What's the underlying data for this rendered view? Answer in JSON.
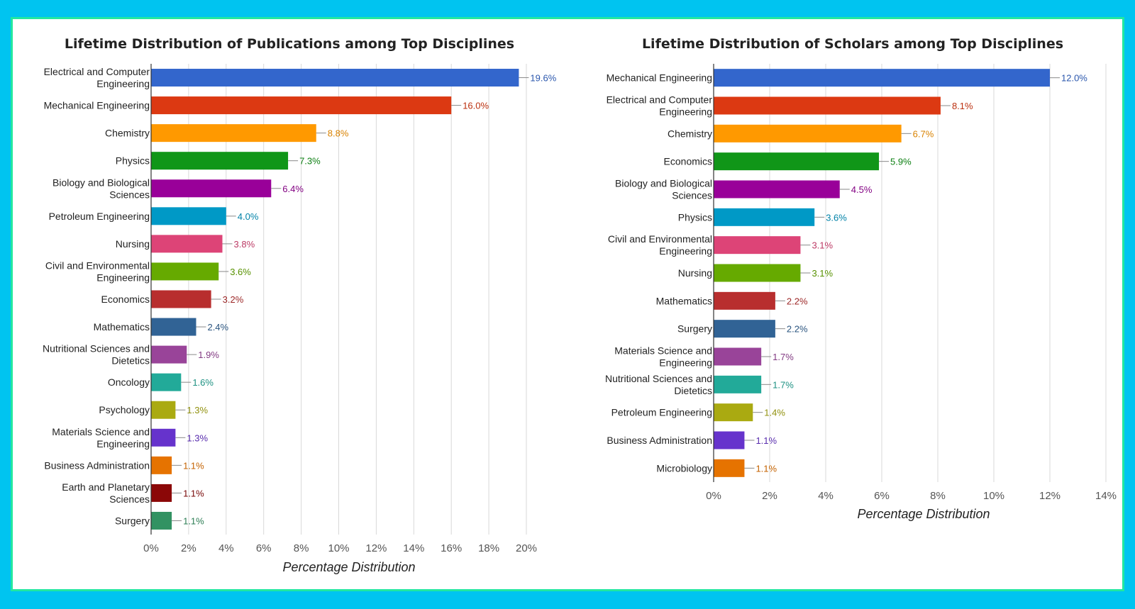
{
  "chart_data": [
    {
      "type": "bar",
      "orientation": "horizontal",
      "title": "Lifetime Distribution of Publications among Top Disciplines",
      "xlabel": "Percentage Distribution",
      "ylabel": "",
      "xlim": [
        0,
        20
      ],
      "xticks": [
        "0%",
        "2%",
        "4%",
        "6%",
        "8%",
        "10%",
        "12%",
        "14%",
        "16%",
        "18%",
        "20%"
      ],
      "grid": true,
      "categories": [
        [
          "Electrical and Computer",
          "Engineering"
        ],
        [
          "Mechanical Engineering"
        ],
        [
          "Chemistry"
        ],
        [
          "Physics"
        ],
        [
          "Biology and Biological",
          "Sciences"
        ],
        [
          "Petroleum Engineering"
        ],
        [
          "Nursing"
        ],
        [
          "Civil and Environmental",
          "Engineering"
        ],
        [
          "Economics"
        ],
        [
          "Mathematics"
        ],
        [
          "Nutritional Sciences and",
          "Dietetics"
        ],
        [
          "Oncology"
        ],
        [
          "Psychology"
        ],
        [
          "Materials Science and",
          "Engineering"
        ],
        [
          "Business Administration"
        ],
        [
          "Earth and Planetary",
          "Sciences"
        ],
        [
          "Surgery"
        ]
      ],
      "values": [
        19.6,
        16.0,
        8.8,
        7.3,
        6.4,
        4.0,
        3.8,
        3.6,
        3.2,
        2.4,
        1.9,
        1.6,
        1.3,
        1.3,
        1.1,
        1.1,
        1.1
      ],
      "labels": [
        "19.6%",
        "16.0%",
        "8.8%",
        "7.3%",
        "6.4%",
        "4.0%",
        "3.8%",
        "3.6%",
        "3.2%",
        "2.4%",
        "1.9%",
        "1.6%",
        "1.3%",
        "1.3%",
        "1.1%",
        "1.1%",
        "1.1%"
      ],
      "colors": [
        "#3366cc",
        "#dc3912",
        "#ff9900",
        "#109618",
        "#990099",
        "#0099c6",
        "#dd4477",
        "#66aa00",
        "#b82e2e",
        "#316395",
        "#994499",
        "#22aa99",
        "#aaaa11",
        "#6633cc",
        "#e67300",
        "#8b0707",
        "#329262"
      ]
    },
    {
      "type": "bar",
      "orientation": "horizontal",
      "title": "Lifetime Distribution of Scholars among Top Disciplines",
      "xlabel": "Percentage Distribution",
      "ylabel": "",
      "xlim": [
        0,
        14
      ],
      "xticks": [
        "0%",
        "2%",
        "4%",
        "6%",
        "8%",
        "10%",
        "12%",
        "14%"
      ],
      "grid": true,
      "categories": [
        [
          "Mechanical Engineering"
        ],
        [
          "Electrical and Computer",
          "Engineering"
        ],
        [
          "Chemistry"
        ],
        [
          "Economics"
        ],
        [
          "Biology and Biological",
          "Sciences"
        ],
        [
          "Physics"
        ],
        [
          "Civil and Environmental",
          "Engineering"
        ],
        [
          "Nursing"
        ],
        [
          "Mathematics"
        ],
        [
          "Surgery"
        ],
        [
          "Materials Science and",
          "Engineering"
        ],
        [
          "Nutritional Sciences and",
          "Dietetics"
        ],
        [
          "Petroleum Engineering"
        ],
        [
          "Business Administration"
        ],
        [
          "Microbiology"
        ]
      ],
      "values": [
        12.0,
        8.1,
        6.7,
        5.9,
        4.5,
        3.6,
        3.1,
        3.1,
        2.2,
        2.2,
        1.7,
        1.7,
        1.4,
        1.1,
        1.1
      ],
      "labels": [
        "12.0%",
        "8.1%",
        "6.7%",
        "5.9%",
        "4.5%",
        "3.6%",
        "3.1%",
        "3.1%",
        "2.2%",
        "2.2%",
        "1.7%",
        "1.7%",
        "1.4%",
        "1.1%",
        "1.1%"
      ],
      "colors": [
        "#3366cc",
        "#dc3912",
        "#ff9900",
        "#109618",
        "#990099",
        "#0099c6",
        "#dd4477",
        "#66aa00",
        "#b82e2e",
        "#316395",
        "#994499",
        "#22aa99",
        "#aaaa11",
        "#6633cc",
        "#e67300"
      ]
    }
  ]
}
